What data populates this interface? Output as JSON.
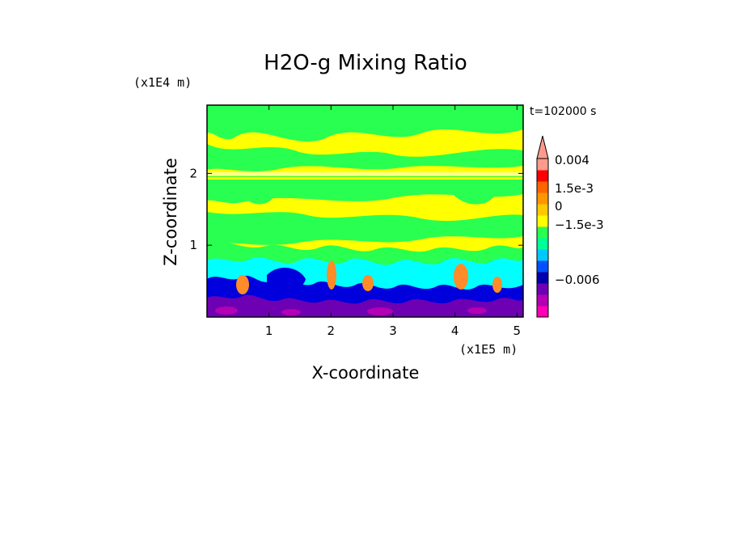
{
  "chart_data": {
    "type": "heatmap",
    "title": "H2O-g Mixing Ratio",
    "xlabel": "X-coordinate",
    "ylabel": "Z-coordinate",
    "x_unit": "(x1E5 m)",
    "y_unit": "(x1E4 m)",
    "time_label": "t=102000 s",
    "xlim": [
      0,
      5.1
    ],
    "ylim": [
      0,
      2.95
    ],
    "x_ticks": [
      1,
      2,
      3,
      4,
      5
    ],
    "y_ticks": [
      1,
      2
    ],
    "x_tick_labels": [
      "1",
      "2",
      "3",
      "4",
      "5"
    ],
    "y_tick_labels": [
      "1",
      "2"
    ],
    "colorbar": {
      "tick_labels": [
        "0.004",
        "1.5e-3",
        "0",
        "−1.5e-3",
        "−0.006"
      ],
      "levels": [
        {
          "color": "#ff00b4"
        },
        {
          "color": "#b400b4"
        },
        {
          "color": "#6e00b4"
        },
        {
          "color": "#0000aa"
        },
        {
          "color": "#0050ff"
        },
        {
          "color": "#00c8ff"
        },
        {
          "color": "#00ff96"
        },
        {
          "color": "#28ff50"
        },
        {
          "color": "#ffff00"
        },
        {
          "color": "#ffc800"
        },
        {
          "color": "#ff9600"
        },
        {
          "color": "#ff6400"
        },
        {
          "color": "#ff0000"
        },
        {
          "color": "#ff9a8c"
        }
      ]
    },
    "colors": {
      "yellow": "#ffff00",
      "green": "#28ff50",
      "cyan": "#00ffff",
      "blue": "#0000dd",
      "purple": "#6e00b4",
      "orange": "#ff8c28"
    }
  }
}
